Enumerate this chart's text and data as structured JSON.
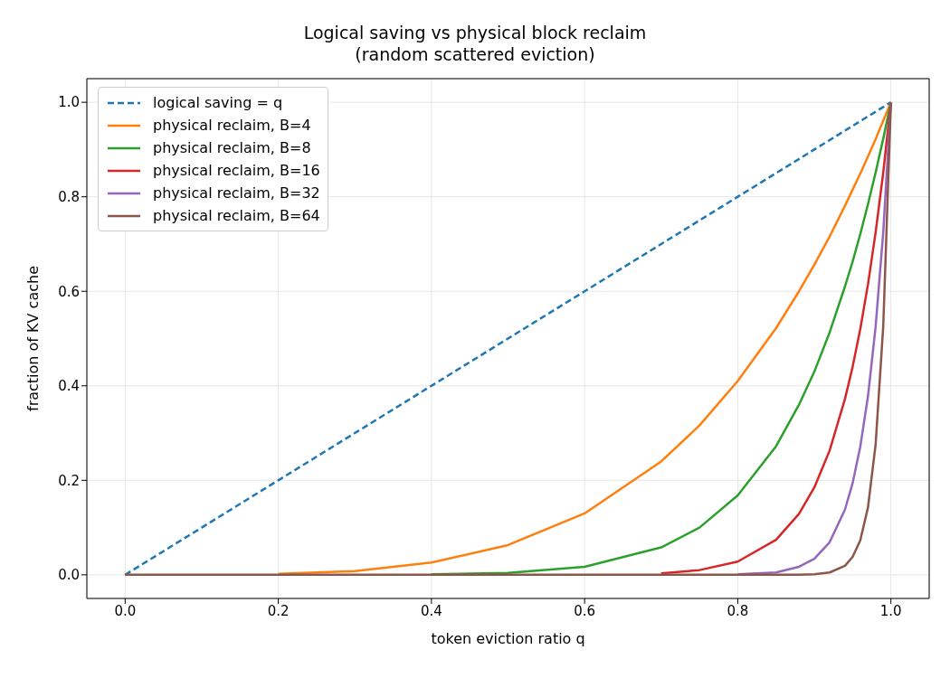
{
  "chart_data": {
    "type": "line",
    "title": "Logical saving vs physical block reclaim",
    "subtitle": "(random scattered eviction)",
    "xlabel": "token eviction ratio q",
    "ylabel": "fraction of KV cache",
    "x": [
      0,
      0.1,
      0.2,
      0.3,
      0.4,
      0.5,
      0.6,
      0.7,
      0.75,
      0.8,
      0.85,
      0.88,
      0.9,
      0.92,
      0.94,
      0.95,
      0.96,
      0.97,
      0.98,
      0.99,
      1.0
    ],
    "series": [
      {
        "name": "logical saving = q",
        "color": "#1f77b4",
        "line_style": "dashed",
        "values": [
          0,
          0.1,
          0.2,
          0.3,
          0.4,
          0.5,
          0.6,
          0.7,
          0.75,
          0.8,
          0.85,
          0.88,
          0.9,
          0.92,
          0.94,
          0.95,
          0.96,
          0.97,
          0.98,
          0.99,
          1.0
        ]
      },
      {
        "name": "physical reclaim, B=4",
        "color": "#ff7f0e",
        "values": [
          null,
          null,
          0.002,
          0.008,
          0.026,
          0.063,
          0.13,
          0.24,
          0.316,
          0.41,
          0.522,
          0.6,
          0.656,
          0.716,
          0.781,
          0.815,
          0.849,
          0.885,
          0.922,
          0.961,
          1.0
        ]
      },
      {
        "name": "physical reclaim, B=8",
        "color": "#2ca02c",
        "values": [
          null,
          null,
          null,
          null,
          0.001,
          0.004,
          0.017,
          0.058,
          0.1,
          0.168,
          0.272,
          0.36,
          0.43,
          0.513,
          0.61,
          0.663,
          0.721,
          0.784,
          0.851,
          0.923,
          1.0
        ]
      },
      {
        "name": "physical reclaim, B=16",
        "color": "#d62728",
        "values": [
          null,
          null,
          null,
          null,
          null,
          null,
          null,
          0.003,
          0.01,
          0.028,
          0.074,
          0.129,
          0.185,
          0.263,
          0.372,
          0.44,
          0.52,
          0.614,
          0.724,
          0.851,
          1.0
        ]
      },
      {
        "name": "physical reclaim, B=32",
        "color": "#9467bd",
        "values": [
          null,
          null,
          null,
          null,
          null,
          null,
          null,
          null,
          null,
          0.001,
          0.005,
          0.017,
          0.034,
          0.069,
          0.138,
          0.194,
          0.271,
          0.377,
          0.524,
          0.725,
          1.0
        ]
      },
      {
        "name": "physical reclaim, B=64",
        "color": "#8c564b",
        "values": [
          0,
          0,
          0,
          0,
          0,
          0,
          0,
          0,
          0,
          0,
          0,
          0,
          0.001,
          0.005,
          0.019,
          0.038,
          0.073,
          0.142,
          0.275,
          0.526,
          1.0
        ]
      }
    ],
    "xlim": [
      -0.05,
      1.05
    ],
    "ylim": [
      -0.05,
      1.05
    ],
    "xticks": [
      {
        "value": 0,
        "label": "0.0"
      },
      {
        "value": 0.2,
        "label": "0.2"
      },
      {
        "value": 0.4,
        "label": "0.4"
      },
      {
        "value": 0.6,
        "label": "0.6"
      },
      {
        "value": 0.8,
        "label": "0.8"
      },
      {
        "value": 1,
        "label": "1.0"
      }
    ],
    "yticks": [
      {
        "value": 0,
        "label": "0.0"
      },
      {
        "value": 0.2,
        "label": "0.2"
      },
      {
        "value": 0.4,
        "label": "0.4"
      },
      {
        "value": 0.6,
        "label": "0.6"
      },
      {
        "value": 0.8,
        "label": "0.8"
      },
      {
        "value": 1,
        "label": "1.0"
      }
    ],
    "grid": true,
    "legend": "top left",
    "marker": "none"
  }
}
